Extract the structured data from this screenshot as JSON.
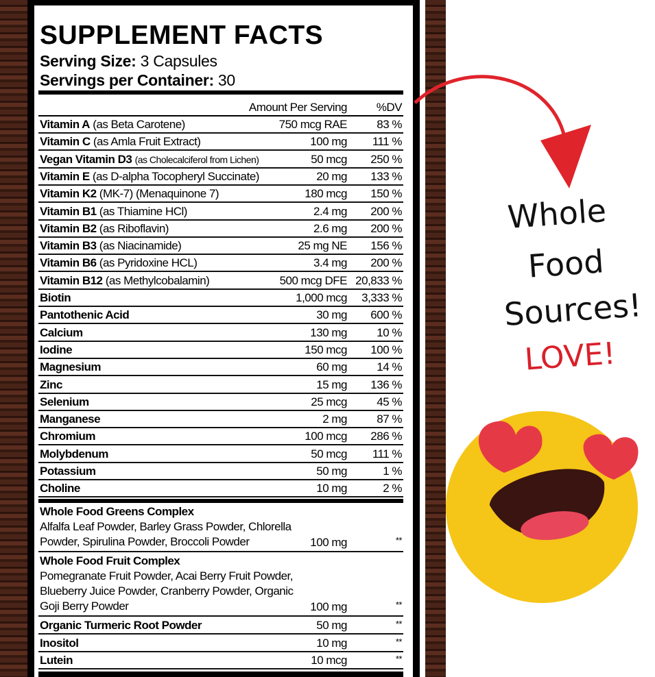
{
  "label": {
    "title": "SUPPLEMENT FACTS",
    "serving_size_label": "Serving Size:",
    "serving_size": "3 Capsules",
    "servings_label": "Servings per Container:",
    "servings": "30",
    "col_amount": "Amount Per Serving",
    "col_dv": "%DV",
    "rows": [
      {
        "name": "Vitamin A",
        "note": "(as Beta Carotene)",
        "amount": "750 mcg RAE",
        "dv": "83 %"
      },
      {
        "name": "Vitamin C",
        "note": "(as Amla Fruit Extract)",
        "amount": "100 mg",
        "dv": "111 %"
      },
      {
        "name": "Vegan Vitamin D3",
        "note": "(as Cholecalciferol from Lichen)",
        "amount": "50 mcg",
        "dv": "250 %"
      },
      {
        "name": "Vitamin E",
        "note": "(as D-alpha Tocopheryl Succinate)",
        "amount": "20 mg",
        "dv": "133 %"
      },
      {
        "name": "Vitamin K2",
        "note": "(MK-7) (Menaquinone 7)",
        "amount": "180 mcg",
        "dv": "150 %"
      },
      {
        "name": "Vitamin B1",
        "note": "(as Thiamine HCl)",
        "amount": "2.4 mg",
        "dv": "200 %"
      },
      {
        "name": "Vitamin B2",
        "note": "(as Riboflavin)",
        "amount": "2.6 mg",
        "dv": "200 %"
      },
      {
        "name": "Vitamin B3",
        "note": "(as Niacinamide)",
        "amount": "25 mg NE",
        "dv": "156 %"
      },
      {
        "name": "Vitamin B6",
        "note": "(as Pyridoxine HCL)",
        "amount": "3.4 mg",
        "dv": "200 %"
      },
      {
        "name": "Vitamin B12",
        "note": "(as Methylcobalamin)",
        "amount": "500 mcg DFE",
        "dv": "20,833 %"
      },
      {
        "name": "Biotin",
        "note": "",
        "amount": "1,000 mcg",
        "dv": "3,333 %"
      },
      {
        "name": "Pantothenic Acid",
        "note": "",
        "amount": "30 mg",
        "dv": "600 %"
      },
      {
        "name": "Calcium",
        "note": "",
        "amount": "130 mg",
        "dv": "10 %"
      },
      {
        "name": "Iodine",
        "note": "",
        "amount": "150 mcg",
        "dv": "100 %"
      },
      {
        "name": "Magnesium",
        "note": "",
        "amount": "60 mg",
        "dv": "14 %"
      },
      {
        "name": "Zinc",
        "note": "",
        "amount": "15 mg",
        "dv": "136 %"
      },
      {
        "name": "Selenium",
        "note": "",
        "amount": "25 mcg",
        "dv": "45 %"
      },
      {
        "name": "Manganese",
        "note": "",
        "amount": "2 mg",
        "dv": "87 %"
      },
      {
        "name": "Chromium",
        "note": "",
        "amount": "100 mcg",
        "dv": "286 %"
      },
      {
        "name": "Molybdenum",
        "note": "",
        "amount": "50 mcg",
        "dv": "111 %"
      },
      {
        "name": "Potassium",
        "note": "",
        "amount": "50 mg",
        "dv": "1 %"
      },
      {
        "name": "Choline",
        "note": "",
        "amount": "10 mg",
        "dv": "2 %"
      }
    ],
    "groups": [
      {
        "name": "Whole Food Greens Complex",
        "text": "Alfalfa Leaf Powder, Barley Grass Powder, Chlorella Powder, Spirulina Powder, Broccoli Powder",
        "amount": "100 mg",
        "dv": "**"
      },
      {
        "name": "Whole Food Fruit Complex",
        "text": "Pomegranate Fruit Powder, Acai Berry Fruit Powder, Blueberry Juice Powder, Cranberry Powder, Organic Goji Berry Powder",
        "amount": "100 mg",
        "dv": "**"
      }
    ],
    "extra_rows": [
      {
        "name": "Organic Turmeric Root Powder",
        "amount": "50 mg",
        "dv": "**"
      },
      {
        "name": "Inositol",
        "amount": "10 mg",
        "dv": "**"
      },
      {
        "name": "Lutein",
        "amount": "10 mcg",
        "dv": "**"
      }
    ]
  },
  "callout": {
    "line1": "Whole",
    "line2": "Food",
    "line3": "Sources!",
    "love": "LOVE!",
    "love_color": "#d9202a",
    "arrow_color": "#e0242c",
    "emoji": "heart-eyes-emoji"
  }
}
